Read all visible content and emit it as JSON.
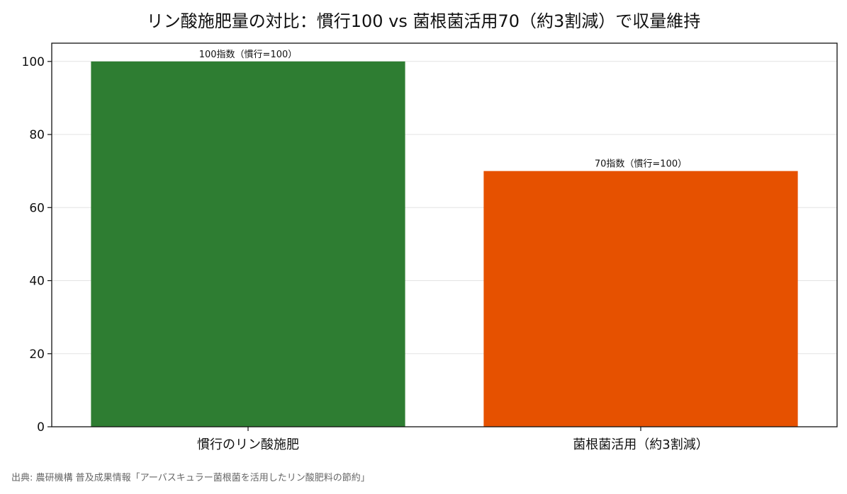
{
  "chart_data": {
    "type": "bar",
    "title": "リン酸施肥量の対比：慣行100 vs 菌根菌活用70（約3割減）で収量維持",
    "categories": [
      "慣行のリン酸施肥",
      "菌根菌活用（約3割減）"
    ],
    "values": [
      100,
      70
    ],
    "data_labels": [
      "100指数（慣行=100）",
      "70指数（慣行=100）"
    ],
    "colors": [
      "#2e7d32",
      "#e65100"
    ],
    "xlabel": "",
    "ylabel": "",
    "ylim": [
      0,
      105
    ],
    "yticks": [
      0,
      20,
      40,
      60,
      80,
      100
    ],
    "grid": true
  },
  "source_note": "出典: 農研機構 普及成果情報「アーバスキュラー菌根菌を活用したリン酸肥料の節約」"
}
